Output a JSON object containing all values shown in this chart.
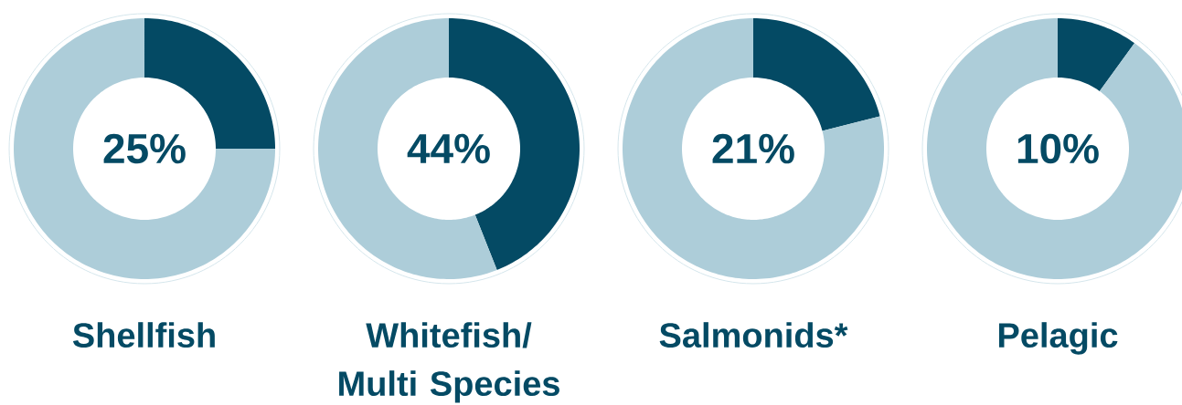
{
  "chart_data": [
    {
      "type": "donut",
      "title": "Shellfish",
      "categories": [
        null,
        null
      ],
      "values": [
        25,
        75
      ],
      "colors": [
        "#044a64",
        "#adcdd9"
      ],
      "annotations": [
        "25%"
      ]
    },
    {
      "type": "donut",
      "title": "Whitefish/ Multi Species",
      "categories": [
        null,
        null
      ],
      "values": [
        44,
        56
      ],
      "colors": [
        "#044a64",
        "#adcdd9"
      ],
      "annotations": [
        "44%"
      ]
    },
    {
      "type": "donut",
      "title": "Salmonids*",
      "categories": [
        null,
        null
      ],
      "values": [
        21,
        79
      ],
      "colors": [
        "#044a64",
        "#adcdd9"
      ],
      "annotations": [
        "21%"
      ]
    },
    {
      "type": "donut",
      "title": "Pelagic",
      "categories": [
        null,
        null
      ],
      "values": [
        10,
        90
      ],
      "colors": [
        "#044a64",
        "#adcdd9"
      ],
      "annotations": [
        "10%"
      ]
    }
  ]
}
